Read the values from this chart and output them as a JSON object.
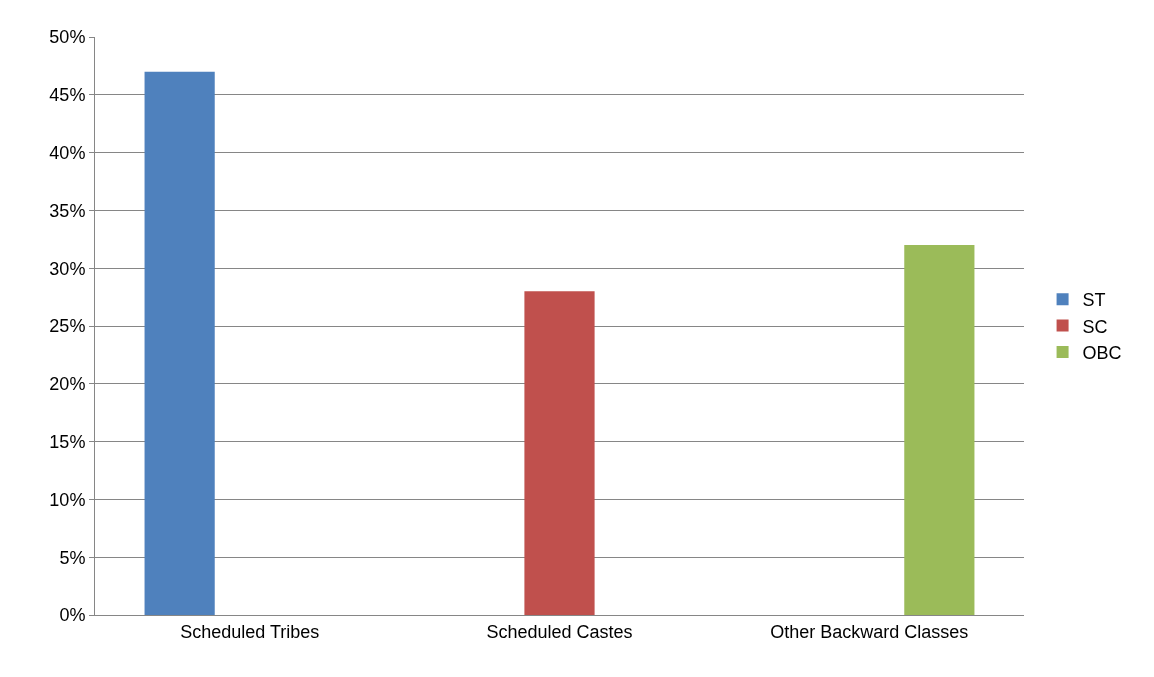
{
  "chart_data": {
    "type": "bar",
    "categories": [
      "Scheduled Tribes",
      "Scheduled Castes",
      "Other Backward Classes"
    ],
    "series": [
      {
        "name": "ST",
        "color": "#4f81bd",
        "values": [
          47,
          null,
          null
        ]
      },
      {
        "name": "SC",
        "color": "#c0504d",
        "values": [
          null,
          28,
          null
        ]
      },
      {
        "name": "OBC",
        "color": "#9bbb59",
        "values": [
          null,
          null,
          32
        ]
      }
    ],
    "ylim": [
      0,
      50
    ],
    "yticks": [
      {
        "value": 0,
        "label": "0%"
      },
      {
        "value": 5,
        "label": "5%"
      },
      {
        "value": 10,
        "label": "10%"
      },
      {
        "value": 15,
        "label": "15%"
      },
      {
        "value": 20,
        "label": "20%"
      },
      {
        "value": 25,
        "label": "25%"
      },
      {
        "value": 30,
        "label": "30%"
      },
      {
        "value": 35,
        "label": "35%"
      },
      {
        "value": 40,
        "label": "40%"
      },
      {
        "value": 45,
        "label": "45%"
      },
      {
        "value": 50,
        "label": "50%"
      }
    ],
    "grid": "y",
    "legend": "right"
  }
}
